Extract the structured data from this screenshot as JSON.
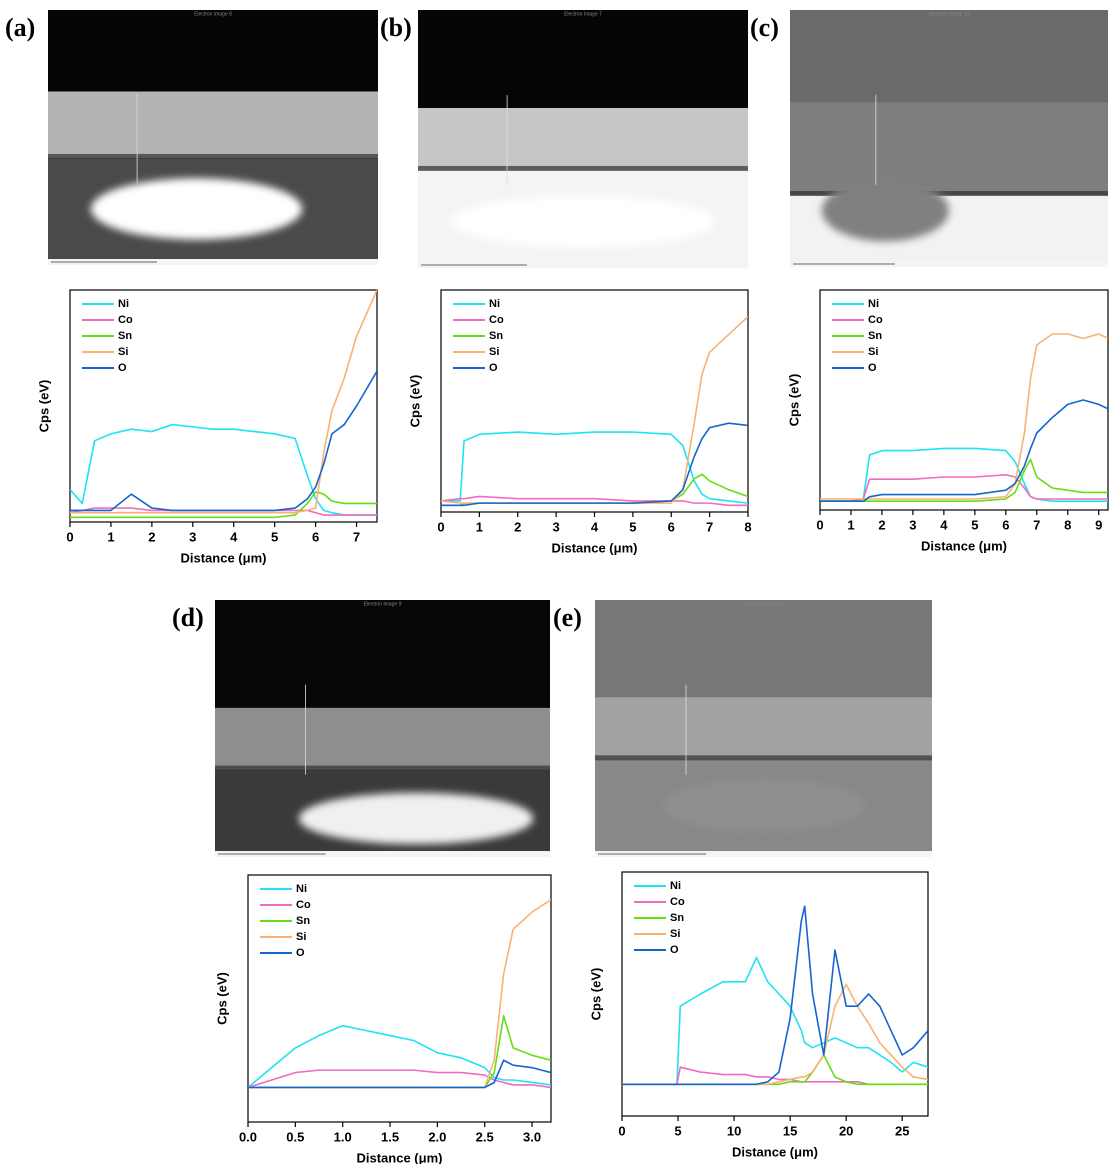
{
  "chart_data": [
    {
      "type": "line",
      "panel_label": "(a)",
      "image_caption": "Electron Image 8",
      "x_label": "Distance (μm)",
      "y_label": "Cps (eV)",
      "legend": "upper left",
      "xlim": [
        0,
        7.5
      ],
      "ylim": [
        0,
        100
      ],
      "xticks": [
        0,
        1,
        2,
        3,
        4,
        5,
        6,
        7
      ],
      "x": [
        0,
        0.3,
        0.6,
        1,
        1.5,
        2,
        2.5,
        3,
        3.5,
        4,
        4.5,
        5,
        5.5,
        5.8,
        6,
        6.2,
        6.4,
        6.7,
        7,
        7.5
      ],
      "series": [
        {
          "name": "Ni",
          "color": "#1fe3f0",
          "values": [
            14,
            8,
            35,
            38,
            40,
            39,
            42,
            41,
            40,
            40,
            39,
            38,
            36,
            20,
            10,
            5,
            4,
            3,
            3,
            3
          ]
        },
        {
          "name": "Co",
          "color": "#f06cc0",
          "values": [
            4,
            5,
            6,
            6,
            6,
            5,
            5,
            5,
            5,
            5,
            5,
            5,
            5,
            5,
            4,
            3,
            3,
            3,
            3,
            3
          ]
        },
        {
          "name": "Sn",
          "color": "#66dd11",
          "values": [
            2,
            2,
            2,
            2,
            2,
            2,
            2,
            2,
            2,
            2,
            2,
            2,
            3,
            8,
            13,
            12,
            9,
            8,
            8,
            8
          ]
        },
        {
          "name": "Si",
          "color": "#f7b274",
          "values": [
            4,
            4,
            4,
            4,
            4,
            4,
            4,
            4,
            4,
            4,
            4,
            4,
            4,
            5,
            6,
            30,
            48,
            62,
            80,
            100
          ]
        },
        {
          "name": "O",
          "color": "#1565d0",
          "values": [
            5,
            5,
            5,
            5,
            12,
            6,
            5,
            5,
            5,
            5,
            5,
            5,
            6,
            10,
            15,
            25,
            38,
            42,
            50,
            65
          ]
        }
      ]
    },
    {
      "type": "line",
      "panel_label": "(b)",
      "image_caption": "Electron Image 7",
      "x_label": "Distance (μm)",
      "y_label": "Cps (eV)",
      "legend": "upper left",
      "xlim": [
        0,
        8
      ],
      "ylim": [
        0,
        100
      ],
      "xticks": [
        0,
        1,
        2,
        3,
        4,
        5,
        6,
        7,
        8
      ],
      "x": [
        0,
        0.5,
        0.6,
        1,
        2,
        3,
        4,
        5,
        6,
        6.3,
        6.6,
        6.8,
        7,
        7.5,
        8
      ],
      "series": [
        {
          "name": "Ni",
          "color": "#1fe3f0",
          "values": [
            5,
            5,
            32,
            35,
            36,
            35,
            36,
            36,
            35,
            30,
            14,
            8,
            6,
            5,
            4
          ]
        },
        {
          "name": "Co",
          "color": "#f06cc0",
          "values": [
            5,
            6,
            6,
            7,
            6,
            6,
            6,
            5,
            5,
            5,
            4,
            4,
            4,
            3,
            3
          ]
        },
        {
          "name": "Sn",
          "color": "#66dd11",
          "values": [
            3,
            3,
            4,
            4,
            4,
            4,
            4,
            4,
            5,
            8,
            15,
            17,
            14,
            10,
            7
          ]
        },
        {
          "name": "Si",
          "color": "#f7b274",
          "values": [
            5,
            4,
            4,
            4,
            4,
            4,
            4,
            4,
            4,
            10,
            40,
            62,
            72,
            80,
            88
          ]
        },
        {
          "name": "O",
          "color": "#1565d0",
          "values": [
            3,
            3,
            3,
            4,
            4,
            4,
            4,
            4,
            5,
            10,
            25,
            33,
            38,
            40,
            39
          ]
        }
      ]
    },
    {
      "type": "line",
      "panel_label": "(c)",
      "image_caption": "Electron Image 10",
      "x_label": "Distance (μm)",
      "y_label": "Cps (eV)",
      "legend": "upper left",
      "xlim": [
        0,
        9.3
      ],
      "ylim": [
        0,
        100
      ],
      "xticks": [
        0,
        1,
        2,
        3,
        4,
        5,
        6,
        7,
        8,
        9
      ],
      "x": [
        0,
        1,
        1.4,
        1.6,
        2,
        3,
        4,
        5,
        6,
        6.3,
        6.6,
        6.8,
        7,
        7.5,
        8,
        8.5,
        9,
        9.3
      ],
      "series": [
        {
          "name": "Ni",
          "color": "#1fe3f0",
          "values": [
            4,
            4,
            5,
            25,
            27,
            27,
            28,
            28,
            27,
            22,
            12,
            6,
            5,
            4,
            4,
            4,
            4,
            4
          ]
        },
        {
          "name": "Co",
          "color": "#f06cc0",
          "values": [
            4,
            4,
            5,
            14,
            14,
            14,
            15,
            15,
            16,
            15,
            10,
            6,
            5,
            5,
            5,
            5,
            5,
            5
          ]
        },
        {
          "name": "Sn",
          "color": "#66dd11",
          "values": [
            4,
            4,
            4,
            4,
            4,
            4,
            4,
            4,
            5,
            8,
            18,
            23,
            15,
            10,
            9,
            8,
            8,
            8
          ]
        },
        {
          "name": "Si",
          "color": "#f7b274",
          "values": [
            5,
            5,
            5,
            5,
            5,
            5,
            5,
            5,
            6,
            12,
            35,
            60,
            75,
            80,
            80,
            78,
            80,
            78
          ]
        },
        {
          "name": "O",
          "color": "#1565d0",
          "values": [
            4,
            4,
            4,
            6,
            7,
            7,
            7,
            7,
            9,
            12,
            20,
            28,
            35,
            42,
            48,
            50,
            48,
            46
          ]
        }
      ]
    },
    {
      "type": "line",
      "panel_label": "(d)",
      "image_caption": "Electron Image 9",
      "x_label": "Distance (μm)",
      "y_label": "Cps (eV)",
      "legend": "upper left",
      "xlim": [
        0,
        3.2
      ],
      "ylim": [
        0,
        100
      ],
      "xticks": [
        {
          "value": 0,
          "label": "0.0"
        },
        0.5,
        {
          "value": 1,
          "label": "1.0"
        },
        1.5,
        {
          "value": 2,
          "label": "2.0"
        },
        2.5,
        {
          "value": 3,
          "label": "3.0"
        }
      ],
      "x": [
        0,
        0.25,
        0.5,
        0.75,
        1,
        1.25,
        1.5,
        1.75,
        2,
        2.25,
        2.5,
        2.6,
        2.7,
        2.8,
        3,
        3.2
      ],
      "series": [
        {
          "name": "Ni",
          "color": "#1fe3f0",
          "values": [
            14,
            22,
            30,
            35,
            39,
            37,
            35,
            33,
            28,
            26,
            22,
            18,
            17,
            17,
            16,
            15
          ]
        },
        {
          "name": "Co",
          "color": "#f06cc0",
          "values": [
            14,
            17,
            20,
            21,
            21,
            21,
            21,
            21,
            20,
            20,
            19,
            17,
            16,
            15,
            15,
            14
          ]
        },
        {
          "name": "Sn",
          "color": "#66dd11",
          "values": [
            14,
            14,
            14,
            14,
            14,
            14,
            14,
            14,
            14,
            14,
            14,
            20,
            43,
            30,
            27,
            25
          ]
        },
        {
          "name": "Si",
          "color": "#f7b274",
          "values": [
            14,
            14,
            14,
            14,
            14,
            14,
            14,
            14,
            14,
            14,
            14,
            25,
            60,
            78,
            85,
            90
          ]
        },
        {
          "name": "O",
          "color": "#1565d0",
          "values": [
            14,
            14,
            14,
            14,
            14,
            14,
            14,
            14,
            14,
            14,
            14,
            16,
            25,
            23,
            22,
            20
          ]
        }
      ]
    },
    {
      "type": "line",
      "panel_label": "(e)",
      "image_caption": "Electron Image 11",
      "x_label": "Distance (μm)",
      "y_label": "Cps (eV)",
      "legend": "upper left",
      "xlim": [
        0,
        27.3
      ],
      "ylim": [
        0,
        100
      ],
      "xticks": [
        0,
        5,
        10,
        15,
        20,
        25
      ],
      "x": [
        0,
        4.9,
        5.2,
        7,
        9,
        11,
        12,
        13,
        14,
        15,
        16,
        16.3,
        17,
        18,
        19,
        20,
        21,
        22,
        23,
        24,
        25,
        26,
        27.3
      ],
      "series": [
        {
          "name": "Ni",
          "color": "#1fe3f0",
          "values": [
            13,
            13,
            45,
            50,
            55,
            55,
            65,
            55,
            50,
            45,
            35,
            30,
            28,
            30,
            32,
            30,
            28,
            28,
            25,
            22,
            18,
            22,
            20
          ]
        },
        {
          "name": "Co",
          "color": "#f06cc0",
          "values": [
            13,
            13,
            20,
            18,
            17,
            17,
            16,
            16,
            15,
            15,
            14,
            14,
            14,
            14,
            14,
            14,
            14,
            13,
            13,
            13,
            13,
            13,
            13
          ]
        },
        {
          "name": "Sn",
          "color": "#66dd11",
          "values": [
            13,
            13,
            13,
            13,
            13,
            13,
            13,
            13,
            13,
            14,
            14,
            14,
            18,
            25,
            16,
            14,
            13,
            13,
            13,
            13,
            13,
            13,
            13
          ]
        },
        {
          "name": "Si",
          "color": "#f7b274",
          "values": [
            13,
            13,
            13,
            13,
            13,
            13,
            13,
            13,
            14,
            15,
            16,
            16,
            18,
            25,
            45,
            54,
            45,
            38,
            30,
            25,
            20,
            16,
            15
          ]
        },
        {
          "name": "O",
          "color": "#1565d0",
          "values": [
            13,
            13,
            13,
            13,
            13,
            13,
            13,
            14,
            18,
            40,
            80,
            86,
            50,
            25,
            68,
            45,
            45,
            50,
            45,
            35,
            25,
            28,
            35
          ]
        }
      ]
    }
  ]
}
